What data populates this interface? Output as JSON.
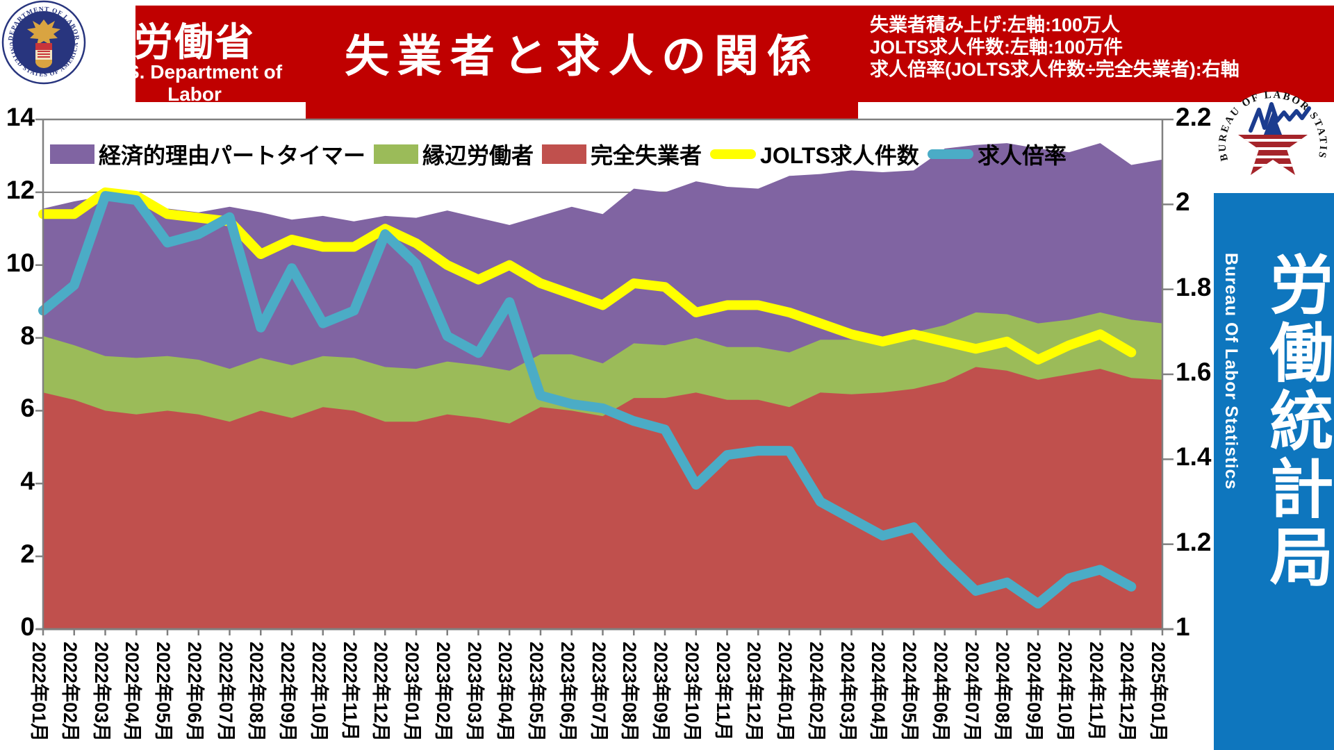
{
  "header": {
    "agency_jp": "労働省",
    "agency_en": "U.S. Department of Labor",
    "title": "失業者と求人の関係",
    "notes": [
      "失業者積み上げ:左軸:100万人",
      "JOLTS求人件数:左軸:100万件",
      "求人倍率(JOLTS求人件数÷完全失業者):右軸"
    ],
    "banner_color": "#C00000",
    "seal": {
      "ring_top": "DEPARTMENT OF LABOR",
      "ring_bottom": "UNITED STATES OF AMERICA"
    }
  },
  "bls_logo": {
    "ring_text": "U.S. BUREAU OF LABOR STATISTICS"
  },
  "sidebar": {
    "title_vertical": "労働統計局",
    "subtitle_vertical": "Bureau Of Labor Statistics",
    "color": "#0E76BE"
  },
  "colors": {
    "unemployed": "#C0504D",
    "marginal": "#9BBB59",
    "parttime": "#8064A2",
    "jolts": "#FFFF00",
    "ratio": "#4BACC6",
    "axis_gray": "#808080"
  },
  "chart_data": {
    "type": "area",
    "title": "失業者と求人の関係",
    "x": [
      "2022年01月",
      "2022年02月",
      "2022年03月",
      "2022年04月",
      "2022年05月",
      "2022年06月",
      "2022年07月",
      "2022年08月",
      "2022年09月",
      "2022年10月",
      "2022年11月",
      "2022年12月",
      "2023年01月",
      "2023年02月",
      "2023年03月",
      "2023年04月",
      "2023年05月",
      "2023年06月",
      "2023年07月",
      "2023年08月",
      "2023年09月",
      "2023年10月",
      "2023年11月",
      "2023年12月",
      "2024年01月",
      "2024年02月",
      "2024年03月",
      "2024年04月",
      "2024年05月",
      "2024年06月",
      "2024年07月",
      "2024年08月",
      "2024年09月",
      "2024年10月",
      "2024年11月",
      "2024年12月",
      "2025年01月"
    ],
    "series": [
      {
        "name": "完全失業者",
        "kind": "area-stack",
        "axis": "left",
        "color": "#C0504D",
        "values": [
          6.5,
          6.3,
          6.0,
          5.9,
          6.0,
          5.9,
          5.7,
          6.0,
          5.8,
          6.1,
          6.0,
          5.7,
          5.7,
          5.9,
          5.8,
          5.65,
          6.1,
          6.0,
          5.85,
          6.35,
          6.35,
          6.5,
          6.3,
          6.3,
          6.1,
          6.5,
          6.45,
          6.5,
          6.6,
          6.8,
          7.2,
          7.1,
          6.85,
          7.0,
          7.15,
          6.9,
          6.85
        ]
      },
      {
        "name": "縁辺労働者",
        "kind": "area-stack",
        "axis": "left",
        "color": "#9BBB59",
        "values": [
          1.55,
          1.5,
          1.5,
          1.55,
          1.5,
          1.5,
          1.45,
          1.45,
          1.45,
          1.4,
          1.45,
          1.5,
          1.45,
          1.45,
          1.45,
          1.45,
          1.45,
          1.55,
          1.45,
          1.5,
          1.45,
          1.5,
          1.45,
          1.45,
          1.5,
          1.45,
          1.5,
          1.5,
          1.55,
          1.55,
          1.5,
          1.55,
          1.55,
          1.5,
          1.55,
          1.6,
          1.55
        ]
      },
      {
        "name": "経済的理由パートタイマー",
        "kind": "area-stack",
        "axis": "left",
        "color": "#8064A2",
        "values": [
          3.5,
          3.95,
          4.4,
          4.25,
          4.05,
          4.05,
          4.45,
          4.0,
          4.0,
          3.85,
          3.75,
          4.15,
          4.15,
          4.15,
          4.05,
          4.0,
          3.8,
          4.05,
          4.1,
          4.25,
          4.2,
          4.3,
          4.4,
          4.35,
          4.85,
          4.55,
          4.65,
          4.55,
          4.45,
          4.85,
          4.6,
          4.7,
          4.8,
          4.6,
          4.65,
          4.25,
          4.5
        ]
      },
      {
        "name": "JOLTS求人件数",
        "kind": "line",
        "axis": "left",
        "color": "#FFFF00",
        "values": [
          11.4,
          11.4,
          12.0,
          11.9,
          11.4,
          11.3,
          11.2,
          10.3,
          10.7,
          10.5,
          10.5,
          11.0,
          10.6,
          10.0,
          9.6,
          10.0,
          9.5,
          9.2,
          8.9,
          9.5,
          9.4,
          8.7,
          8.9,
          8.9,
          8.7,
          8.4,
          8.1,
          7.9,
          8.1,
          7.9,
          7.7,
          7.9,
          7.4,
          7.8,
          8.1,
          7.6
        ]
      },
      {
        "name": "求人倍率",
        "kind": "line",
        "axis": "right",
        "color": "#4BACC6",
        "values": [
          1.75,
          1.81,
          2.02,
          2.01,
          1.91,
          1.93,
          1.97,
          1.71,
          1.85,
          1.72,
          1.75,
          1.93,
          1.86,
          1.69,
          1.65,
          1.77,
          1.55,
          1.53,
          1.52,
          1.49,
          1.47,
          1.34,
          1.41,
          1.42,
          1.42,
          1.3,
          1.26,
          1.22,
          1.24,
          1.16,
          1.09,
          1.11,
          1.06,
          1.12,
          1.14,
          1.1
        ]
      }
    ],
    "left_axis": {
      "min": 0,
      "max": 14,
      "step": 2,
      "ticks": [
        "0",
        "2",
        "4",
        "6",
        "8",
        "10",
        "12",
        "14"
      ]
    },
    "right_axis": {
      "min": 1,
      "max": 2.2,
      "step": 0.2,
      "ticks": [
        "1",
        "1.2",
        "1.4",
        "1.6",
        "1.8",
        "2",
        "2.2"
      ]
    },
    "legend_position": "top-inside",
    "grid": "horizontal"
  }
}
